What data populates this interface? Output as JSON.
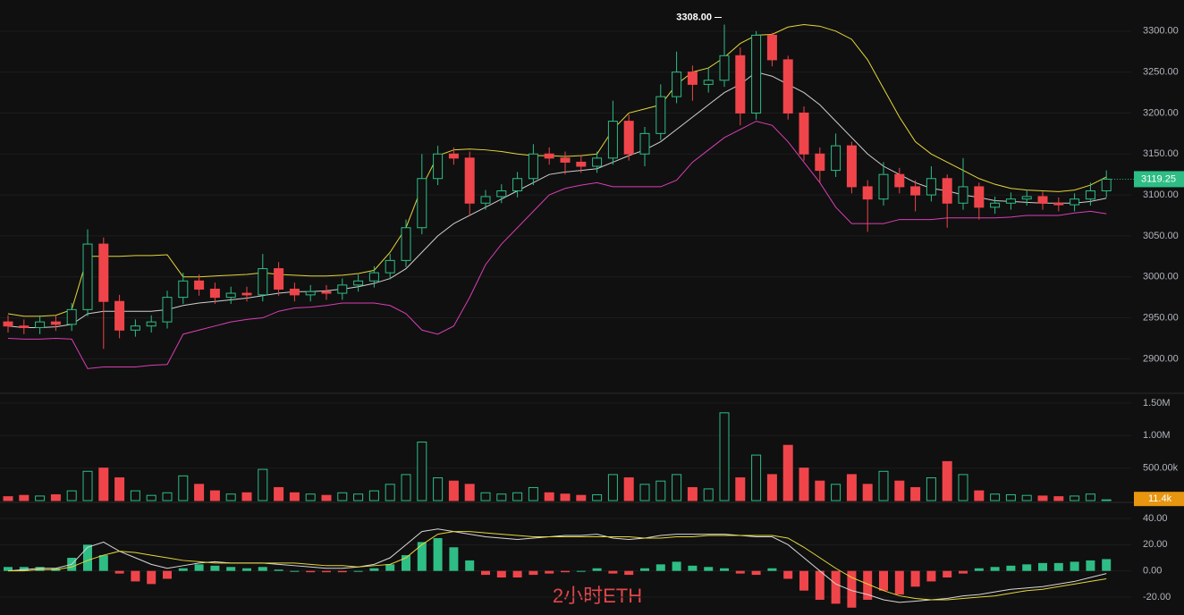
{
  "watermark": "2小时ETH",
  "chart_data": [
    {
      "type": "candlestick",
      "up_color": "#2ebd85",
      "down_color": "#ef454a",
      "open": [
        2945,
        2940,
        2938,
        2945,
        2942,
        2960,
        3040,
        2970,
        2935,
        2940,
        2945,
        2975,
        2995,
        2985,
        2975,
        2980,
        2978,
        3010,
        2985,
        2978,
        2982,
        2980,
        2990,
        2995,
        3005,
        3020,
        3060,
        3120,
        3150,
        3145,
        3090,
        3098,
        3105,
        3120,
        3150,
        3145,
        3140,
        3135,
        3145,
        3190,
        3150,
        3175,
        3220,
        3250,
        3235,
        3240,
        3270,
        3200,
        3295,
        3265,
        3200,
        3150,
        3130,
        3160,
        3110,
        3095,
        3125,
        3110,
        3100,
        3120,
        3090,
        3110,
        3085,
        3090,
        3095,
        3098,
        3090,
        3088,
        3095,
        3105
      ],
      "high": [
        2953,
        2948,
        2953,
        2953,
        2968,
        3058,
        3048,
        2978,
        2948,
        2953,
        2983,
        3005,
        3003,
        2993,
        2988,
        2988,
        3028,
        3018,
        2993,
        2990,
        2990,
        2998,
        3003,
        3013,
        3028,
        3070,
        3150,
        3160,
        3158,
        3153,
        3106,
        3113,
        3128,
        3162,
        3158,
        3153,
        3148,
        3153,
        3215,
        3198,
        3183,
        3235,
        3275,
        3258,
        3255,
        3308,
        3280,
        3300,
        3298,
        3270,
        3208,
        3158,
        3175,
        3165,
        3118,
        3140,
        3133,
        3118,
        3135,
        3125,
        3145,
        3115,
        3098,
        3103,
        3106,
        3104,
        3097,
        3102,
        3115,
        3130
      ],
      "low": [
        2932,
        2930,
        2930,
        2934,
        2934,
        2952,
        2912,
        2925,
        2927,
        2932,
        2937,
        2967,
        2977,
        2967,
        2967,
        2970,
        2970,
        2977,
        2970,
        2970,
        2972,
        2972,
        2982,
        2987,
        2997,
        3012,
        3052,
        3112,
        3137,
        3075,
        3082,
        3090,
        3097,
        3112,
        3137,
        3125,
        3127,
        3127,
        3137,
        3142,
        3135,
        3167,
        3212,
        3215,
        3225,
        3232,
        3185,
        3192,
        3257,
        3192,
        3142,
        3115,
        3122,
        3102,
        3055,
        3087,
        3102,
        3080,
        3092,
        3060,
        3082,
        3070,
        3077,
        3082,
        3087,
        3082,
        3080,
        3080,
        3087,
        3097
      ],
      "close": [
        2940,
        2938,
        2945,
        2942,
        2960,
        3040,
        2970,
        2935,
        2940,
        2945,
        2975,
        2995,
        2985,
        2975,
        2980,
        2978,
        3010,
        2985,
        2978,
        2982,
        2980,
        2990,
        2995,
        3005,
        3020,
        3060,
        3120,
        3150,
        3145,
        3090,
        3098,
        3105,
        3120,
        3150,
        3145,
        3140,
        3135,
        3145,
        3190,
        3150,
        3175,
        3220,
        3250,
        3235,
        3240,
        3270,
        3200,
        3295,
        3265,
        3200,
        3150,
        3130,
        3160,
        3110,
        3095,
        3125,
        3110,
        3100,
        3120,
        3090,
        3110,
        3085,
        3090,
        3095,
        3098,
        3090,
        3088,
        3095,
        3105,
        3119.25
      ],
      "series": [
        {
          "color": "#e6d63a",
          "values": [
            2955,
            2952,
            2952,
            2953,
            2960,
            3025,
            3025,
            3025,
            3026,
            3026,
            3027,
            3000,
            3000,
            3001,
            3002,
            3003,
            3005,
            3003,
            3002,
            3001,
            3001,
            3002,
            3004,
            3008,
            3030,
            3060,
            3110,
            3148,
            3155,
            3156,
            3155,
            3153,
            3150,
            3148,
            3148,
            3147,
            3148,
            3150,
            3180,
            3200,
            3205,
            3210,
            3235,
            3250,
            3255,
            3268,
            3285,
            3295,
            3296,
            3305,
            3308,
            3306,
            3300,
            3290,
            3265,
            3230,
            3195,
            3165,
            3150,
            3140,
            3130,
            3120,
            3113,
            3108,
            3106,
            3105,
            3104,
            3106,
            3112,
            3122
          ]
        },
        {
          "color": "#d0d0d0",
          "values": [
            2940,
            2938,
            2938,
            2939,
            2942,
            2955,
            2958,
            2958,
            2958,
            2958,
            2960,
            2965,
            2968,
            2970,
            2972,
            2974,
            2977,
            2980,
            2982,
            2982,
            2983,
            2985,
            2988,
            2992,
            2998,
            3010,
            3030,
            3050,
            3065,
            3075,
            3085,
            3095,
            3105,
            3115,
            3125,
            3128,
            3130,
            3132,
            3140,
            3148,
            3155,
            3165,
            3180,
            3195,
            3210,
            3225,
            3235,
            3250,
            3245,
            3235,
            3225,
            3210,
            3190,
            3170,
            3150,
            3135,
            3125,
            3115,
            3108,
            3105,
            3100,
            3097,
            3093,
            3092,
            3091,
            3090,
            3090,
            3090,
            3092,
            3096
          ]
        },
        {
          "color": "#d93fb4",
          "values": [
            2925,
            2924,
            2924,
            2925,
            2924,
            2888,
            2890,
            2890,
            2890,
            2892,
            2893,
            2930,
            2935,
            2940,
            2945,
            2948,
            2950,
            2958,
            2962,
            2963,
            2965,
            2968,
            2968,
            2968,
            2965,
            2955,
            2935,
            2930,
            2940,
            2975,
            3015,
            3040,
            3060,
            3080,
            3100,
            3108,
            3112,
            3115,
            3110,
            3110,
            3110,
            3110,
            3118,
            3140,
            3155,
            3170,
            3180,
            3190,
            3185,
            3165,
            3140,
            3115,
            3085,
            3065,
            3065,
            3065,
            3070,
            3070,
            3070,
            3072,
            3072,
            3072,
            3072,
            3073,
            3075,
            3075,
            3075,
            3078,
            3080,
            3077
          ]
        }
      ],
      "ylim": [
        2860,
        3338
      ],
      "yticks": [
        {
          "value": 3300,
          "label": "3300.00"
        },
        {
          "value": 3250,
          "label": "3250.00"
        },
        {
          "value": 3200,
          "label": "3200.00"
        },
        {
          "value": 3150,
          "label": "3150.00"
        },
        {
          "value": 3100,
          "label": "3100.00"
        },
        {
          "value": 3050,
          "label": "3050.00"
        },
        {
          "value": 3000,
          "label": "3000.00"
        },
        {
          "value": 2950,
          "label": "2950.00"
        },
        {
          "value": 2900,
          "label": "2900.00"
        }
      ],
      "annotation": {
        "value": 3308,
        "label": "3308.00"
      },
      "last_price": 3119.25,
      "grid": true
    },
    {
      "type": "bar",
      "last_color": "#e8950f",
      "values": [
        60000,
        80000,
        70000,
        90000,
        150000,
        450000,
        500000,
        350000,
        150000,
        80000,
        120000,
        380000,
        250000,
        150000,
        100000,
        120000,
        480000,
        200000,
        120000,
        100000,
        80000,
        120000,
        100000,
        150000,
        250000,
        400000,
        900000,
        350000,
        300000,
        250000,
        120000,
        100000,
        120000,
        200000,
        120000,
        100000,
        80000,
        90000,
        400000,
        350000,
        250000,
        300000,
        400000,
        200000,
        180000,
        1350000,
        350000,
        700000,
        400000,
        850000,
        500000,
        300000,
        250000,
        400000,
        250000,
        450000,
        300000,
        200000,
        350000,
        600000,
        400000,
        150000,
        100000,
        90000,
        80000,
        70000,
        60000,
        70000,
        100000,
        11400
      ],
      "ylim": [
        0,
        1650000
      ],
      "yticks": [
        {
          "value": 1500000,
          "label": "1.50M"
        },
        {
          "value": 1000000,
          "label": "1.00M"
        },
        {
          "value": 500000,
          "label": "500.00k"
        }
      ],
      "last_value": {
        "value": 11400,
        "label": "11.4k"
      }
    },
    {
      "type": "macd",
      "histogram": [
        3,
        3,
        3,
        2,
        10,
        20,
        12,
        -2,
        -8,
        -10,
        -6,
        2,
        5,
        4,
        3,
        2,
        3,
        1,
        0,
        -1,
        -1,
        -1,
        0,
        2,
        5,
        12,
        22,
        25,
        18,
        8,
        -3,
        -5,
        -5,
        -3,
        -2,
        -1,
        0,
        2,
        -2,
        -3,
        2,
        5,
        7,
        4,
        3,
        2,
        -2,
        -3,
        2,
        -6,
        -15,
        -22,
        -25,
        -28,
        -22,
        -15,
        -18,
        -12,
        -8,
        -5,
        -2,
        2,
        3,
        4,
        5,
        6,
        6,
        7,
        8,
        9
      ],
      "series": [
        {
          "color": "#d8d8d8",
          "values": [
            0,
            1,
            2,
            2,
            5,
            18,
            22,
            15,
            10,
            5,
            2,
            4,
            6,
            7,
            6,
            6,
            6,
            5,
            4,
            3,
            2,
            2,
            3,
            5,
            10,
            20,
            30,
            32,
            30,
            28,
            26,
            25,
            24,
            25,
            26,
            27,
            27,
            28,
            25,
            24,
            25,
            27,
            28,
            28,
            28,
            28,
            27,
            26,
            26,
            20,
            10,
            0,
            -10,
            -15,
            -18,
            -22,
            -24,
            -23,
            -22,
            -21,
            -19,
            -18,
            -16,
            -14,
            -13,
            -12,
            -10,
            -8,
            -5,
            -2
          ]
        },
        {
          "color": "#e6d63a",
          "values": [
            0,
            0,
            1,
            1,
            3,
            8,
            12,
            15,
            14,
            12,
            10,
            8,
            7,
            6,
            6,
            6,
            6,
            6,
            6,
            5,
            4,
            4,
            3,
            4,
            5,
            10,
            20,
            28,
            30,
            30,
            29,
            28,
            27,
            26,
            26,
            26,
            26,
            26,
            26,
            26,
            25,
            25,
            26,
            26,
            27,
            27,
            27,
            27,
            27,
            25,
            18,
            10,
            2,
            -5,
            -10,
            -15,
            -19,
            -21,
            -22,
            -22,
            -21,
            -20,
            -19,
            -17,
            -15,
            -14,
            -12,
            -10,
            -8,
            -6
          ]
        }
      ],
      "ylim": [
        -33.6,
        50.2
      ],
      "yticks": [
        {
          "value": 40,
          "label": "40.00"
        },
        {
          "value": 20,
          "label": "20.00"
        },
        {
          "value": 0,
          "label": "0.00"
        },
        {
          "value": -20,
          "label": "-20.00"
        }
      ]
    }
  ]
}
